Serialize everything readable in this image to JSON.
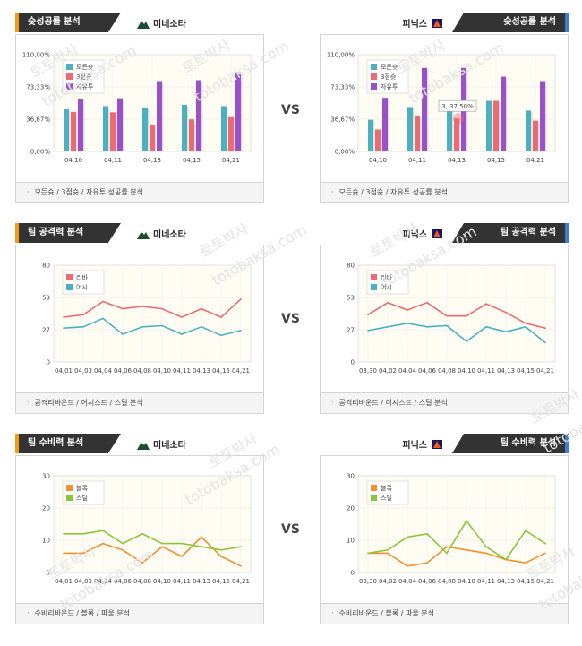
{
  "panels": [
    {
      "id": "p1",
      "title": "슛성공률 분석",
      "team": "미네소타",
      "side": "left",
      "caption": "모든슛 / 3점슛 / 자유투 성공률 분석",
      "chart_data": {
        "type": "bar",
        "categories": [
          "04,10",
          "04,11",
          "04,13",
          "04,15",
          "04,21"
        ],
        "ylim": [
          0,
          110
        ],
        "yticks": [
          "0,00%",
          "36,67%",
          "73,33%",
          "110,00%"
        ],
        "series": [
          {
            "name": "모든슛",
            "color": "#4bb1c1",
            "values": [
              48.0,
              51.5,
              50.0,
              53.0,
              51.5
            ]
          },
          {
            "name": "3점슛",
            "color": "#ec6b72",
            "values": [
              45.0,
              44.5,
              30.0,
              36.5,
              39.0
            ]
          },
          {
            "name": "자유투",
            "color": "#9b50c9",
            "values": [
              60.0,
              60.5,
              80.0,
              81.0,
              90.0
            ]
          }
        ]
      }
    },
    {
      "id": "p2",
      "title": "슛성공률 분석",
      "team": "피닉스",
      "side": "right",
      "caption": "모든슛 / 3점슛 / 자유투 성공률 분석",
      "tooltip": "3, 37,50%",
      "chart_data": {
        "type": "bar",
        "categories": [
          "04,10",
          "04,11",
          "04,13",
          "04,15",
          "04,21"
        ],
        "ylim": [
          0,
          110
        ],
        "yticks": [
          "0,00%",
          "36,67%",
          "73,33%",
          "110,00%"
        ],
        "series": [
          {
            "name": "모든슛",
            "color": "#4bb1c1",
            "values": [
              36.0,
              50.5,
              50.0,
              57.5,
              46.5
            ]
          },
          {
            "name": "3점슛",
            "color": "#ec6b72",
            "values": [
              25.0,
              40.0,
              37.5,
              57.5,
              35.0
            ]
          },
          {
            "name": "자유투",
            "color": "#9b50c9",
            "values": [
              61.0,
              95.0,
              95.0,
              85.0,
              80.0
            ]
          }
        ]
      }
    },
    {
      "id": "p3",
      "title": "팀 공격력 분석",
      "team": "미네소타",
      "side": "left",
      "caption": "공격리바운드 / 어시스트 / 스틸 분석",
      "chart_data": {
        "type": "line",
        "categories": [
          "04,01",
          "04,03",
          "04,04",
          "04,06",
          "04,08",
          "04,10",
          "04,11",
          "04,13",
          "04,15",
          "04,21"
        ],
        "ylim": [
          0,
          80
        ],
        "yticks": [
          "0",
          "27",
          "53",
          "80"
        ],
        "series": [
          {
            "name": "리바",
            "color": "#ec6b72",
            "values": [
              37,
              39,
              50,
              44,
              46,
              44,
              37,
              44,
              37,
              52
            ]
          },
          {
            "name": "어시",
            "color": "#4bb1c1",
            "values": [
              28,
              29,
              36,
              23,
              29,
              30,
              23,
              29,
              22,
              26
            ]
          }
        ]
      }
    },
    {
      "id": "p4",
      "title": "팀 공격력 분석",
      "team": "피닉스",
      "side": "right",
      "caption": "공격리바운드 / 어시스트 / 스틸 분석",
      "chart_data": {
        "type": "line",
        "categories": [
          "03,30",
          "04,02",
          "04,04",
          "04,06",
          "04,08",
          "04,10",
          "04,11",
          "04,13",
          "04,15",
          "04,21"
        ],
        "ylim": [
          0,
          80
        ],
        "yticks": [
          "0",
          "27",
          "53",
          "80"
        ],
        "series": [
          {
            "name": "리바",
            "color": "#ec6b72",
            "values": [
              39,
              49,
              43,
              49,
              38,
              38,
              48,
              41,
              32,
              28
            ]
          },
          {
            "name": "어시",
            "color": "#4bb1c1",
            "values": [
              26,
              29,
              32,
              29,
              30,
              17,
              29,
              25,
              29,
              16
            ]
          }
        ]
      }
    },
    {
      "id": "p5",
      "title": "팀 수비력 분석",
      "team": "미네소타",
      "side": "left",
      "caption": "수비리바운드 / 블록 / 파울 분석",
      "chart_data": {
        "type": "line",
        "categories": [
          "04,01",
          "04,03",
          "04,04",
          "04,06",
          "04,08",
          "04,10",
          "04,11",
          "04,13",
          "04,15",
          "04,21"
        ],
        "ylim": [
          0,
          30
        ],
        "yticks": [
          "0",
          "10",
          "20",
          "30"
        ],
        "series": [
          {
            "name": "블록",
            "color": "#f0902e",
            "values": [
              6,
              6,
              9,
              7,
              3,
              8,
              5,
              11,
              5,
              2
            ]
          },
          {
            "name": "스틸",
            "color": "#8ac53a",
            "values": [
              12,
              12,
              13,
              9,
              12,
              9,
              9,
              8,
              7,
              8
            ]
          }
        ]
      }
    },
    {
      "id": "p6",
      "title": "팀 수비력 분석",
      "team": "피닉스",
      "side": "right",
      "caption": "수비리바운드 / 블록 / 파울 분석",
      "chart_data": {
        "type": "line",
        "categories": [
          "03,30",
          "04,02",
          "04,04",
          "04,06",
          "04,08",
          "04,10",
          "04,11",
          "04,13",
          "04,15",
          "04,21"
        ],
        "ylim": [
          0,
          30
        ],
        "yticks": [
          "0",
          "10",
          "20",
          "30"
        ],
        "series": [
          {
            "name": "블록",
            "color": "#f0902e",
            "values": [
              6,
              6,
              2,
              3,
              8,
              7,
              6,
              4,
              3,
              6
            ]
          },
          {
            "name": "스틸",
            "color": "#8ac53a",
            "values": [
              6,
              7,
              11,
              12,
              6,
              16,
              8,
              4,
              13,
              9
            ]
          }
        ]
      }
    }
  ],
  "vs_label": "VS",
  "watermarks": [
    "토토박사",
    "totobaksa.com"
  ]
}
